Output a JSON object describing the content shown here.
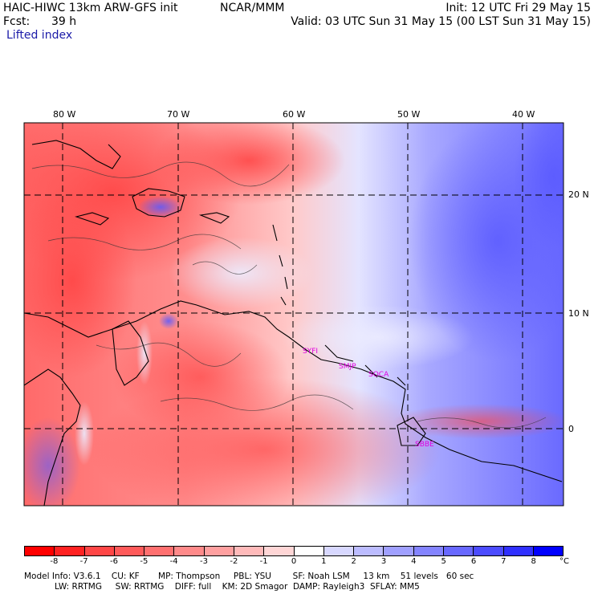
{
  "header": {
    "model_title": "HAIC-HIWC 13km ARW-GFS init",
    "org": "NCAR/MMM",
    "init": "Init: 12 UTC Fri 29 May 15",
    "fcst_label": "Fcst:",
    "fcst_value": "39 h",
    "valid": "Valid: 03 UTC Sun 31 May 15 (00 LST Sun 31 May 15)",
    "field": "Lifted index"
  },
  "axes": {
    "longitudes": [
      "80 W",
      "70 W",
      "60 W",
      "50 W",
      "40 W"
    ],
    "latitudes": [
      "20 N",
      "10 N",
      "0"
    ]
  },
  "map": {
    "region": "Caribbean and northern South America",
    "stations": [
      "SYFI",
      "SMJP",
      "SOCA",
      "SBBE"
    ]
  },
  "colorbar": {
    "ticks": [
      "-8",
      "-7",
      "-6",
      "-5",
      "-4",
      "-3",
      "-2",
      "-1",
      "0",
      "1",
      "2",
      "3",
      "4",
      "5",
      "6",
      "7",
      "8"
    ],
    "unit": "°C",
    "colors": [
      "#ff0000",
      "#ff2222",
      "#ff4646",
      "#ff5a5a",
      "#ff7070",
      "#ff8a8a",
      "#ffa0a0",
      "#ffbaba",
      "#ffd6d6",
      "#ffffff",
      "#d8d8ff",
      "#bcbcff",
      "#a0a0ff",
      "#8484ff",
      "#6868ff",
      "#4c4cff",
      "#3030ff",
      "#0000ff"
    ]
  },
  "model_info": {
    "line1": "Model Info: V3.6.1    CU: KF       MP: Thompson     PBL: YSU        SF: Noah LSM     13 km    51 levels   60 sec",
    "line2": "LW: RRTMG     SW: RRTMG    DIFF: full    KM: 2D Smagor  DAMP: Rayleigh3  SFLAY: MM5"
  }
}
